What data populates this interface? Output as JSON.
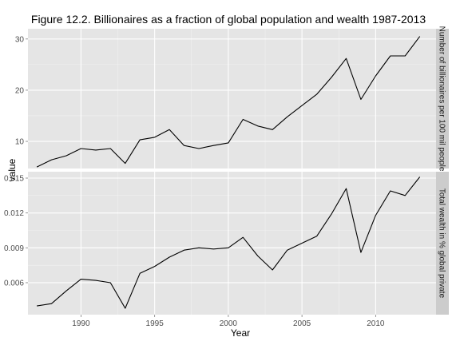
{
  "chart_data": {
    "type": "line",
    "title": "Figure 12.2. Billionaires as a fraction of global population and wealth 1987-2013",
    "xlabel": "Year",
    "ylabel": "value",
    "x_ticks": [
      1990,
      1995,
      2000,
      2005,
      2010
    ],
    "xlim": [
      1986.4,
      2014.1
    ],
    "grid": true,
    "legend": "none",
    "colors": {
      "panel_bg": "#E5E5E5",
      "grid_major": "#FFFFFF",
      "grid_minor": "#F2F2F2",
      "strip_bg": "#CCCCCC",
      "line": "#000000"
    },
    "panels": [
      {
        "strip_label": "Number of billionaires per 100 mil people",
        "ylim": [
          4.7,
          32.0
        ],
        "y_ticks": [
          10,
          20,
          30
        ],
        "y_tick_labels": [
          "10",
          "20",
          "30"
        ],
        "x": [
          1987,
          1988,
          1989,
          1990,
          1991,
          1992,
          1993,
          1994,
          1995,
          1996,
          1997,
          1998,
          1999,
          2000,
          2001,
          2002,
          2003,
          2004,
          2005,
          2006,
          2007,
          2008,
          2009,
          2010,
          2011,
          2012,
          2013
        ],
        "values": [
          5.0,
          6.4,
          7.2,
          8.6,
          8.3,
          8.6,
          5.7,
          10.3,
          10.8,
          12.3,
          9.2,
          8.6,
          9.2,
          9.7,
          14.3,
          13.0,
          12.3,
          14.8,
          17.0,
          19.2,
          22.5,
          26.2,
          18.2,
          22.8,
          26.7,
          26.7,
          30.5
        ]
      },
      {
        "strip_label": "Total wealth in % global private",
        "ylim": [
          0.00325,
          0.01555
        ],
        "y_ticks": [
          0.006,
          0.009,
          0.012,
          0.015
        ],
        "y_tick_labels": [
          "0.006",
          "0.009",
          "0.012",
          "0.015"
        ],
        "x": [
          1987,
          1988,
          1989,
          1990,
          1991,
          1992,
          1993,
          1994,
          1995,
          1996,
          1997,
          1998,
          1999,
          2000,
          2001,
          2002,
          2003,
          2004,
          2005,
          2006,
          2007,
          2008,
          2009,
          2010,
          2011,
          2012,
          2013
        ],
        "values": [
          0.004,
          0.0042,
          0.0053,
          0.0063,
          0.0062,
          0.006,
          0.0038,
          0.0068,
          0.0074,
          0.0082,
          0.0088,
          0.009,
          0.0089,
          0.009,
          0.0099,
          0.0083,
          0.0071,
          0.0088,
          0.0094,
          0.01,
          0.0119,
          0.0141,
          0.0086,
          0.0118,
          0.0139,
          0.0135,
          0.0151
        ]
      }
    ]
  }
}
